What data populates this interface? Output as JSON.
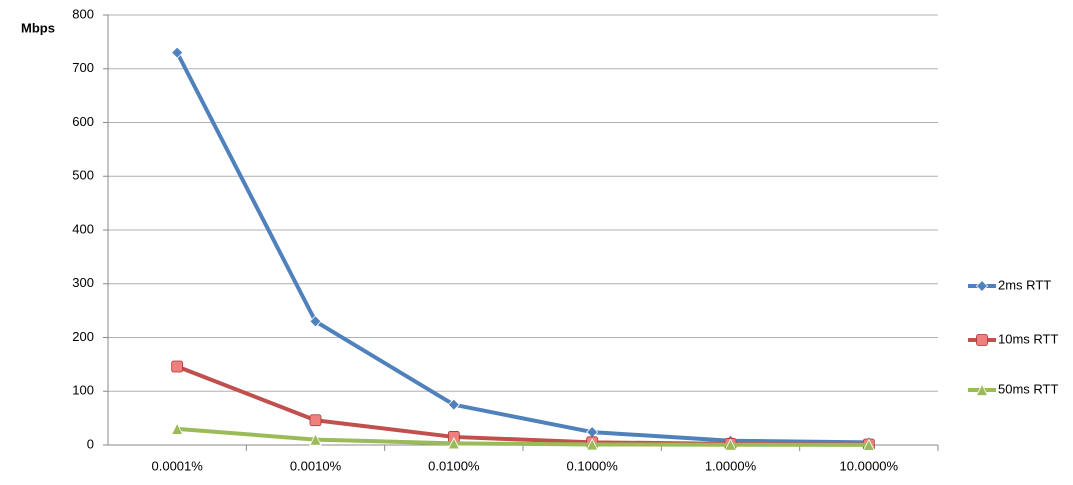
{
  "chart_data": {
    "type": "line",
    "y_label": "Mbps",
    "categories": [
      "0.0001%",
      "0.0010%",
      "0.0100%",
      "0.1000%",
      "1.0000%",
      "10.0000%"
    ],
    "series": [
      {
        "name": "2ms RTT",
        "color": "#4f81bd",
        "marker": "diamond",
        "values": [
          730,
          230,
          75,
          24,
          8,
          5
        ]
      },
      {
        "name": "10ms RTT",
        "color": "#c0504d",
        "marker": "square",
        "values": [
          146,
          46,
          15,
          5,
          2,
          1
        ]
      },
      {
        "name": "50ms RTT",
        "color": "#9bbb59",
        "marker": "triangle",
        "values": [
          30,
          10,
          3,
          1,
          0.5,
          0.2
        ]
      }
    ],
    "ylim": [
      0,
      800
    ],
    "yticks": [
      0,
      100,
      200,
      300,
      400,
      500,
      600,
      700,
      800
    ],
    "grid": true,
    "legend": "right"
  }
}
